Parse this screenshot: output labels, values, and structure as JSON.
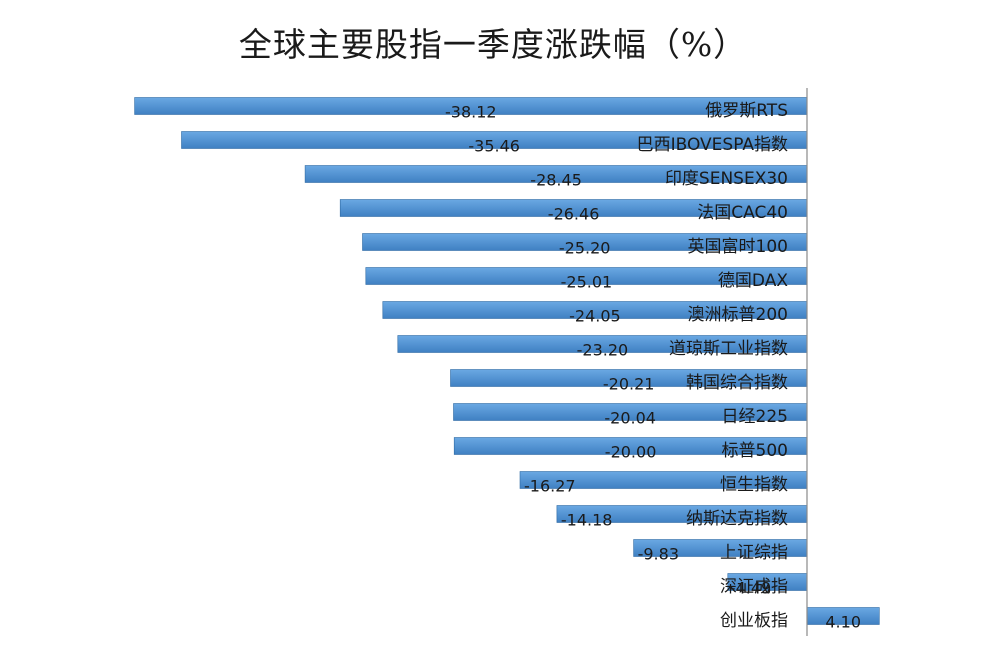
{
  "chart_data": {
    "type": "bar",
    "orientation": "horizontal",
    "title": "全球主要股指一季度涨跌幅（%）",
    "categories": [
      "俄罗斯RTS",
      "巴西IBOVESPA指数",
      "印度SENSEX30",
      "法国CAC40",
      "英国富时100",
      "德国DAX",
      "澳洲标普200",
      "道琼斯工业指数",
      "韩国综合指数",
      "日经225",
      "标普500",
      "恒生指数",
      "纳斯达克指数",
      "上证综指",
      "深证成指",
      "创业板指"
    ],
    "values": [
      -38.12,
      -35.46,
      -28.45,
      -26.46,
      -25.2,
      -25.01,
      -24.05,
      -23.2,
      -20.21,
      -20.04,
      -20.0,
      -16.27,
      -14.18,
      -9.83,
      -4.49,
      4.1
    ],
    "value_labels": [
      "-38.12",
      "-35.46",
      "-28.45",
      "-26.46",
      "-25.20",
      "-25.01",
      "-24.05",
      "-23.20",
      "-20.21",
      "-20.04",
      "-20.00",
      "-16.27",
      "-14.18",
      "-9.83",
      "-4.49",
      "4.10"
    ],
    "xlabel": "",
    "ylabel": "",
    "xlim": [
      -38.12,
      4.1
    ],
    "grid": false,
    "legend": "none",
    "bar_color": "#4a8fd0",
    "bar_edge_color": "#2f6aa3",
    "axis_color": "#8a8a8a"
  }
}
